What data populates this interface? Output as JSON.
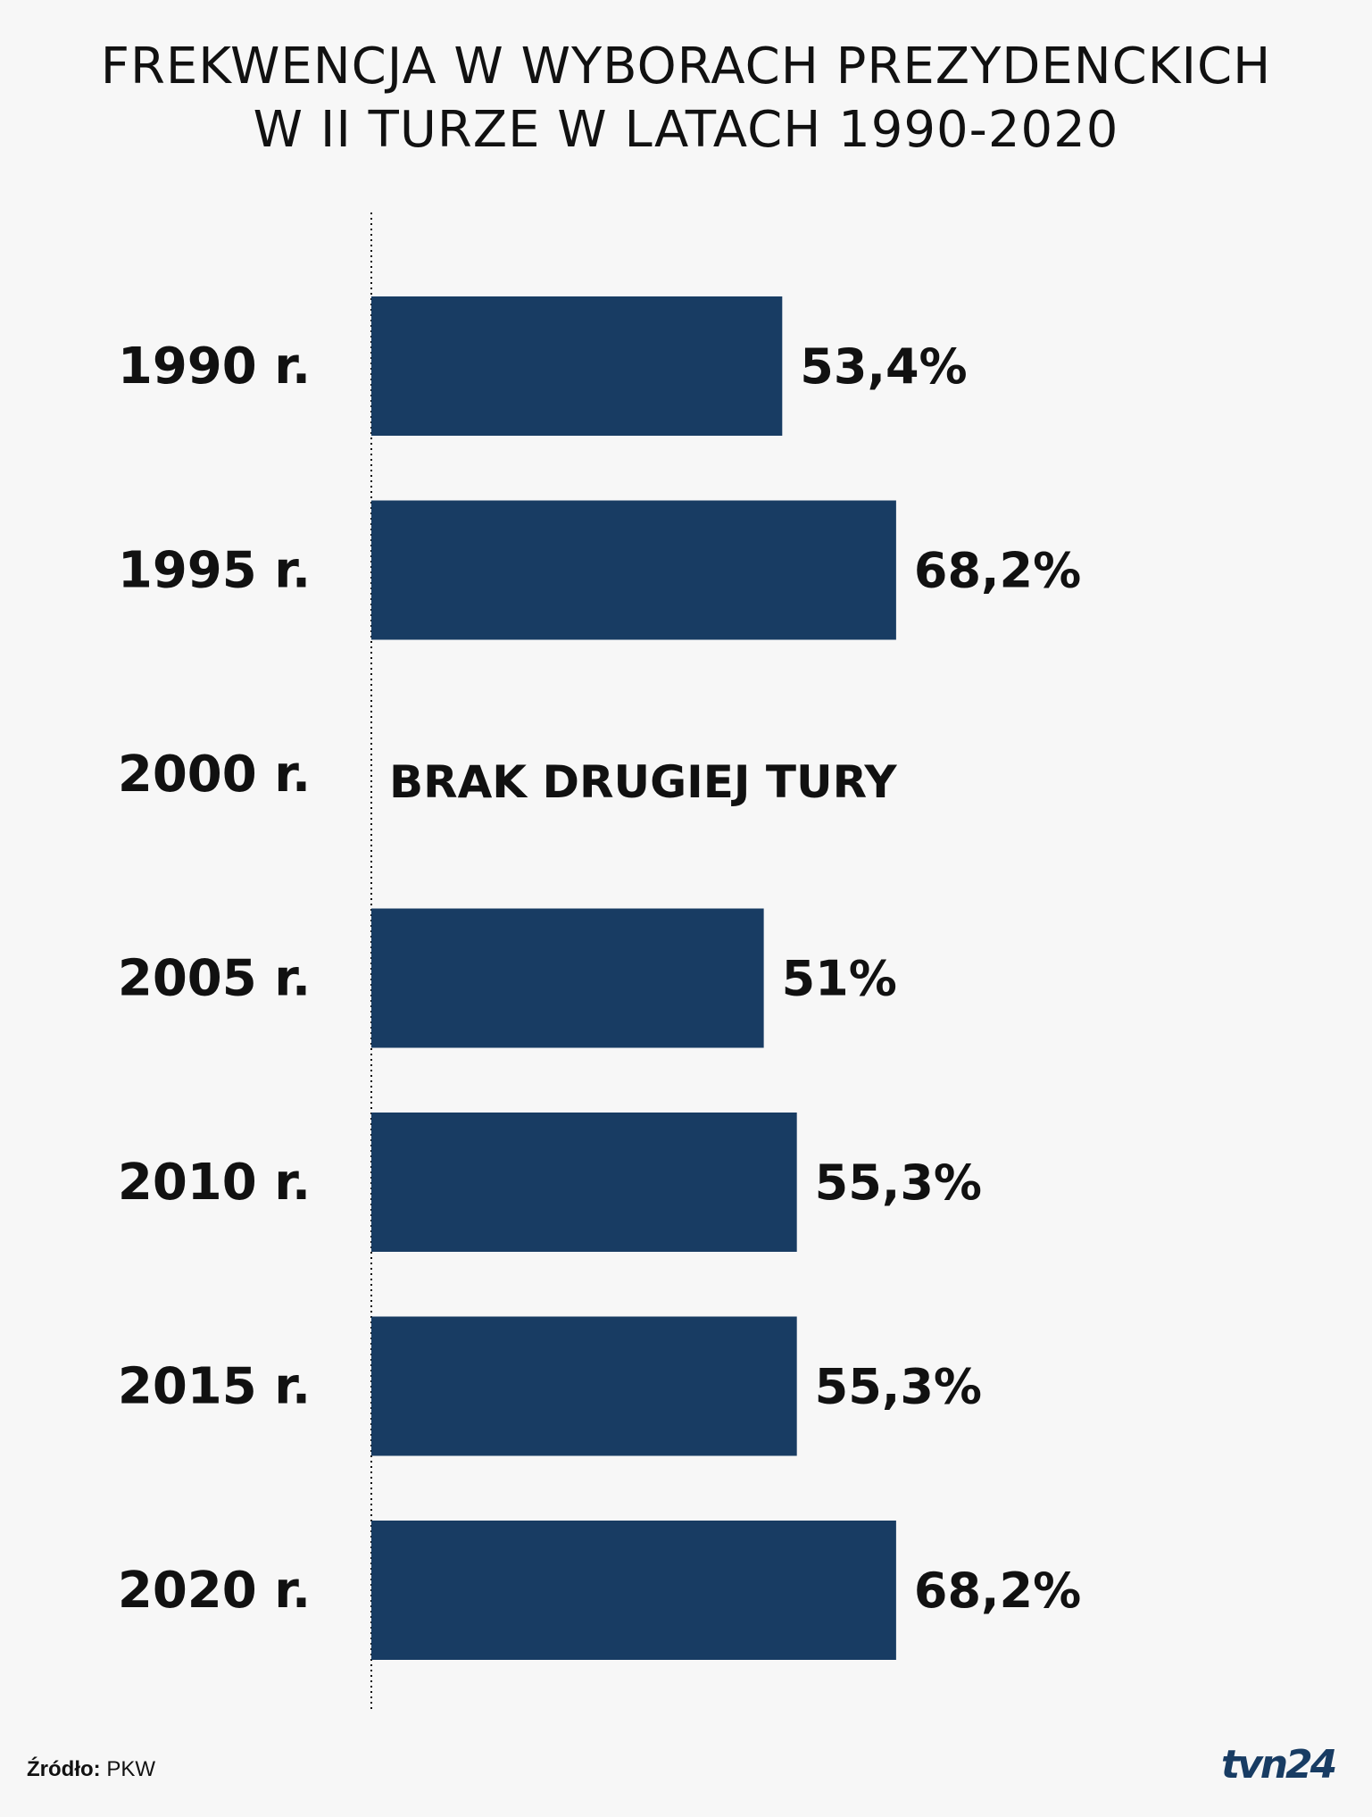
{
  "chart_data": {
    "type": "bar",
    "orientation": "horizontal",
    "title": "FREKWENCJA W WYBORACH PREZYDENCKICH",
    "subtitle": "W II TURZE W LATACH 1990-2020",
    "categories": [
      "1990 r.",
      "1995 r.",
      "2000 r.",
      "2005 r.",
      "2010 r.",
      "2015 r.",
      "2020 r."
    ],
    "values": [
      53.4,
      68.2,
      null,
      51,
      55.3,
      55.3,
      68.2
    ],
    "value_labels": [
      "53,4%",
      "68,2%",
      "BRAK DRUGIEJ TURY",
      "51%",
      "55,3%",
      "55,3%",
      "68,2%"
    ],
    "xlim": [
      0,
      100
    ],
    "grid": false,
    "legend": "none",
    "bar_color": "#183c63"
  },
  "source": {
    "label": "Źródło:",
    "value": "PKW"
  },
  "logo": {
    "text": "tvn24",
    "color": "#183c63"
  }
}
